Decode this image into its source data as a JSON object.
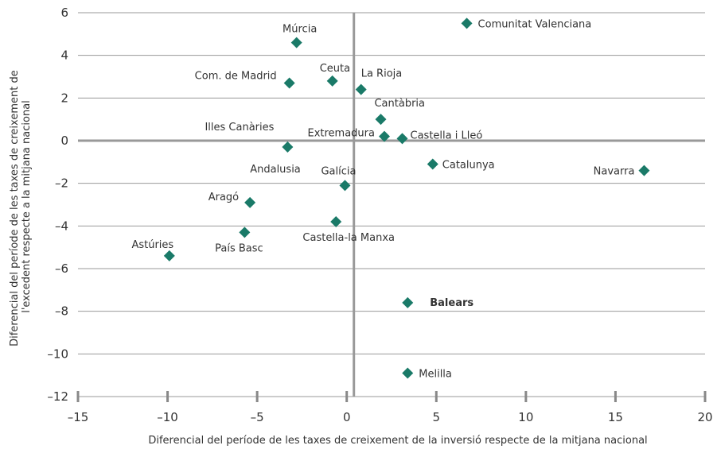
{
  "chart_data": {
    "type": "scatter",
    "title": "",
    "xlabel": "Diferencial del període de les taxes de creixement de la inversió respecte de la mitjana nacional",
    "ylabel_lines": [
      "Diferencial del període de les taxes de creixement de",
      "l'excedent respecte a la mitjana nacional"
    ],
    "xlim": [
      -15,
      20
    ],
    "ylim": [
      -12,
      6
    ],
    "xticks": [
      -15,
      -10,
      -5,
      0,
      5,
      10,
      15,
      20
    ],
    "xtick_labels": [
      "–15",
      "–10",
      "–5",
      "0",
      "5",
      "10",
      "15",
      "20"
    ],
    "yticks": [
      6,
      4,
      2,
      0,
      -2,
      -4,
      -6,
      -8,
      -10,
      -12
    ],
    "ytick_labels": [
      "6",
      "4",
      "2",
      "0",
      "–2",
      "–4",
      "–6",
      "–8",
      "–10",
      "–12"
    ],
    "grid": "horizontal",
    "marker": "diamond",
    "marker_color": "#1a7a68",
    "axis_color": "#999999",
    "grid_color": "#9a9a9a",
    "points": [
      {
        "label": "Comunitat Valenciana",
        "x": 6.7,
        "y": 5.5
      },
      {
        "label": "Múrcia",
        "x": -2.8,
        "y": 4.6
      },
      {
        "label": "Com. de Madrid",
        "x": -3.2,
        "y": 2.7
      },
      {
        "label": "Ceuta",
        "x": -0.8,
        "y": 2.8
      },
      {
        "label": "La Rioja",
        "x": 0.8,
        "y": 2.4
      },
      {
        "label": "Cantàbria",
        "x": 1.9,
        "y": 1.0
      },
      {
        "label": "Illes Canàries",
        "x": -3.3,
        "y": -0.3
      },
      {
        "label": "Extremadura",
        "x": 2.1,
        "y": 0.2
      },
      {
        "label": "Castella i Lleó",
        "x": 3.1,
        "y": 0.1
      },
      {
        "label": "Catalunya",
        "x": 4.8,
        "y": -1.1
      },
      {
        "label": "Navarra",
        "x": 16.6,
        "y": -1.4
      },
      {
        "label": "Galícia",
        "x": -0.1,
        "y": -2.1
      },
      {
        "label": "Aragó",
        "x": -5.4,
        "y": -2.9
      },
      {
        "label": "Castella-la Manxa",
        "x": -0.6,
        "y": -3.8
      },
      {
        "label": "País Basc",
        "x": -5.7,
        "y": -4.3
      },
      {
        "label": "Astúries",
        "x": -9.9,
        "y": -5.4
      },
      {
        "label": "Balears",
        "x": 3.4,
        "y": -7.6
      },
      {
        "label": "Melilla",
        "x": 3.4,
        "y": -10.9
      }
    ],
    "extra_labels": [
      {
        "label": "Andalusia"
      }
    ]
  }
}
